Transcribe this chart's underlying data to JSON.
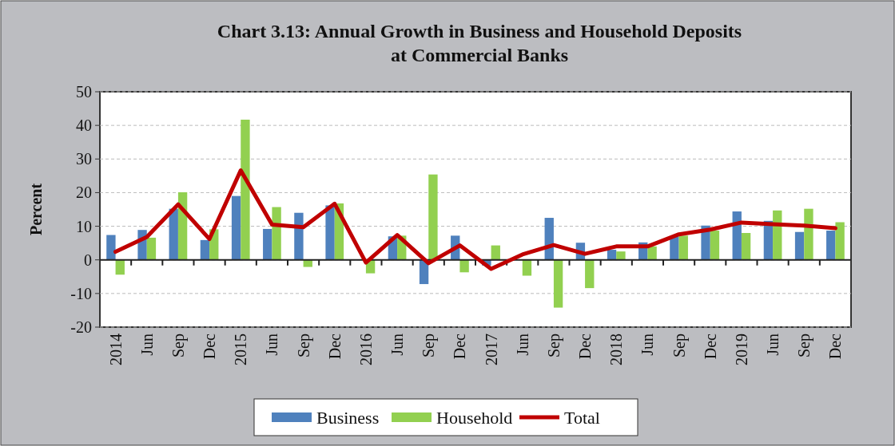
{
  "chart_data": {
    "type": "bar",
    "title": "Chart 3.13: Annual Growth in Business and Household Deposits at Commercial Banks",
    "ylabel": "Percent",
    "categories": [
      "2014",
      "Jun",
      "Sep",
      "Dec",
      "2015",
      "Jun",
      "Sep",
      "Dec",
      "2016",
      "Jun",
      "Sep",
      "Dec",
      "2017",
      "Jun",
      "Sep",
      "Dec",
      "2018",
      "Jun",
      "Sep",
      "Dec",
      "2019",
      "Jun",
      "Sep",
      "Dec"
    ],
    "series": [
      {
        "name": "Business",
        "color": "#4f81bd",
        "values": [
          7.4,
          8.9,
          15.2,
          5.9,
          19.0,
          9.2,
          14.0,
          16.2,
          null,
          7.0,
          -7.2,
          7.2,
          -1.7,
          0,
          12.5,
          5.1,
          3.0,
          5.2,
          7.0,
          10.2,
          14.4,
          11.6,
          8.3,
          8.7
        ]
      },
      {
        "name": "Household",
        "color": "#92d050",
        "values": [
          -4.4,
          6.6,
          20.1,
          9.1,
          41.7,
          15.7,
          -2.1,
          16.8,
          -4.0,
          7.2,
          25.4,
          -3.7,
          4.3,
          -4.7,
          -14.2,
          -8.4,
          2.5,
          4.0,
          7.2,
          8.7,
          8.0,
          14.7,
          15.2,
          11.2
        ]
      },
      {
        "name": "Total",
        "type": "line",
        "color": "#c00000",
        "values": [
          2.4,
          6.8,
          16.5,
          6.2,
          26.6,
          10.5,
          9.7,
          16.7,
          -0.8,
          7.4,
          -1.0,
          4.3,
          -2.7,
          1.6,
          4.4,
          1.8,
          4.0,
          4.0,
          7.6,
          9.0,
          11.1,
          10.6,
          10.2,
          9.4
        ]
      }
    ],
    "ylim": [
      -20,
      50
    ],
    "yticks": [
      -20,
      -10,
      0,
      10,
      20,
      30,
      40,
      50
    ],
    "grid": "y",
    "legend": "bottom"
  }
}
